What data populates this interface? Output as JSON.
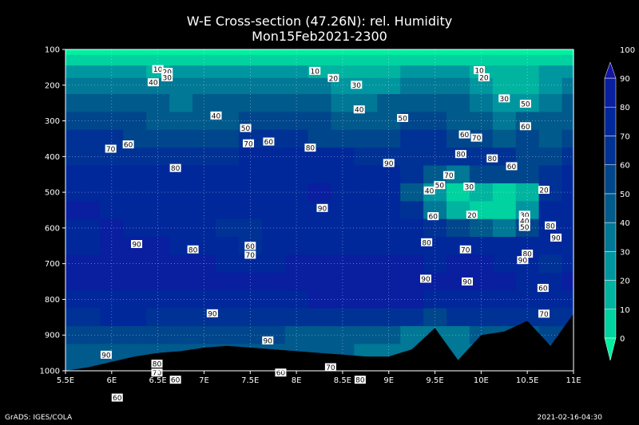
{
  "title_line1": "W-E Cross-section (47.26N): rel. Humidity",
  "title_line2": "Mon15Feb2021-2300",
  "footer_left": "GrADS: IGES/COLA",
  "footer_right": "2021-02-16-04:30",
  "chart_data": {
    "type": "heatmap",
    "title": "W-E Cross-section (47.26N): rel. Humidity",
    "subtitle": "Mon15Feb2021-2300",
    "x_ticks": [
      "5.5E",
      "6E",
      "6.5E",
      "7E",
      "7.5E",
      "8E",
      "8.5E",
      "9E",
      "9.5E",
      "10E",
      "10.5E",
      "11E"
    ],
    "x_values": [
      5.5,
      6,
      6.5,
      7,
      7.5,
      8,
      8.5,
      9,
      9.5,
      10,
      10.5,
      11
    ],
    "xlim": [
      5.5,
      11
    ],
    "y_ticks": [
      "100",
      "200",
      "300",
      "400",
      "500",
      "600",
      "700",
      "800",
      "900",
      "1000"
    ],
    "y_values": [
      100,
      200,
      300,
      400,
      500,
      600,
      700,
      800,
      900,
      1000
    ],
    "ylim": [
      1000,
      100
    ],
    "grid": true,
    "colorbar": {
      "levels": [
        "0",
        "10",
        "20",
        "30",
        "40",
        "50",
        "60",
        "70",
        "80",
        "90",
        "100"
      ],
      "colors": [
        "#00f0a0",
        "#00d2a0",
        "#00b4a0",
        "#0096a0",
        "#007896",
        "#005a8c",
        "#00468c",
        "#003296",
        "#00289b",
        "#0a1ea0",
        "#1414a5"
      ]
    },
    "rows_hpa": [
      100,
      130,
      160,
      200,
      250,
      300,
      350,
      400,
      450,
      500,
      550,
      600,
      650,
      700,
      750,
      800,
      850,
      900,
      950,
      1000
    ],
    "cols_lon": [
      5.5,
      5.75,
      6,
      6.25,
      6.5,
      6.75,
      7,
      7.25,
      7.5,
      7.75,
      8,
      8.25,
      8.5,
      8.75,
      9,
      9.25,
      9.5,
      9.75,
      10,
      10.25,
      10.5,
      10.75,
      11
    ],
    "rh": [
      [
        5,
        5,
        5,
        5,
        5,
        5,
        5,
        5,
        5,
        5,
        5,
        5,
        5,
        5,
        5,
        5,
        5,
        5,
        5,
        5,
        5,
        5,
        5
      ],
      [
        15,
        15,
        15,
        15,
        15,
        15,
        15,
        15,
        15,
        15,
        15,
        15,
        15,
        15,
        15,
        15,
        15,
        15,
        15,
        15,
        15,
        15,
        15
      ],
      [
        30,
        30,
        30,
        30,
        28,
        30,
        30,
        30,
        30,
        30,
        30,
        28,
        25,
        25,
        28,
        30,
        30,
        30,
        25,
        22,
        25,
        30,
        30
      ],
      [
        42,
        42,
        42,
        42,
        40,
        42,
        42,
        42,
        42,
        42,
        42,
        40,
        35,
        32,
        38,
        42,
        42,
        40,
        35,
        25,
        28,
        35,
        40
      ],
      [
        55,
        55,
        55,
        55,
        50,
        48,
        50,
        52,
        55,
        55,
        55,
        52,
        48,
        45,
        50,
        55,
        55,
        50,
        45,
        35,
        38,
        45,
        50
      ],
      [
        62,
        62,
        62,
        60,
        58,
        55,
        55,
        58,
        62,
        62,
        62,
        60,
        58,
        55,
        58,
        62,
        62,
        58,
        55,
        40,
        55,
        50,
        55
      ],
      [
        70,
        70,
        70,
        68,
        65,
        65,
        65,
        68,
        72,
        70,
        70,
        68,
        68,
        65,
        68,
        72,
        70,
        66,
        62,
        55,
        60,
        55,
        62
      ],
      [
        78,
        78,
        78,
        76,
        75,
        75,
        75,
        78,
        80,
        80,
        82,
        82,
        80,
        78,
        78,
        78,
        75,
        72,
        70,
        70,
        68,
        62,
        70
      ],
      [
        85,
        85,
        85,
        84,
        84,
        82,
        82,
        84,
        85,
        86,
        88,
        88,
        88,
        86,
        86,
        72,
        55,
        45,
        62,
        68,
        62,
        75,
        82
      ],
      [
        88,
        88,
        88,
        87,
        86,
        85,
        84,
        84,
        86,
        88,
        88,
        90,
        88,
        88,
        88,
        55,
        30,
        15,
        20,
        18,
        25,
        78,
        86
      ],
      [
        90,
        90,
        88,
        88,
        88,
        85,
        84,
        84,
        84,
        85,
        86,
        88,
        88,
        88,
        88,
        70,
        40,
        20,
        18,
        15,
        30,
        80,
        88
      ],
      [
        88,
        88,
        90,
        88,
        88,
        85,
        80,
        78,
        70,
        80,
        86,
        88,
        88,
        88,
        88,
        85,
        70,
        60,
        55,
        45,
        60,
        85,
        88
      ],
      [
        88,
        88,
        90,
        90,
        90,
        88,
        85,
        80,
        72,
        82,
        86,
        88,
        88,
        88,
        88,
        88,
        86,
        85,
        85,
        88,
        80,
        88,
        88
      ],
      [
        90,
        90,
        92,
        92,
        92,
        92,
        90,
        88,
        88,
        88,
        90,
        90,
        90,
        90,
        90,
        90,
        88,
        90,
        90,
        88,
        86,
        70,
        85
      ],
      [
        90,
        90,
        92,
        92,
        92,
        92,
        92,
        92,
        90,
        90,
        92,
        92,
        92,
        92,
        92,
        92,
        90,
        90,
        90,
        90,
        88,
        85,
        90
      ],
      [
        86,
        86,
        88,
        88,
        88,
        88,
        88,
        88,
        88,
        88,
        88,
        90,
        90,
        90,
        90,
        90,
        88,
        88,
        88,
        88,
        88,
        88,
        88
      ],
      [
        78,
        78,
        80,
        80,
        78,
        76,
        76,
        76,
        76,
        75,
        75,
        74,
        72,
        72,
        70,
        70,
        68,
        70,
        72,
        72,
        72,
        75,
        76
      ],
      [
        65,
        65,
        68,
        68,
        68,
        66,
        64,
        62,
        60,
        60,
        58,
        58,
        58,
        55,
        50,
        45,
        40,
        45,
        50,
        55,
        55,
        60,
        62
      ],
      [
        55,
        55,
        58,
        58,
        58,
        56,
        55,
        55,
        55,
        54,
        52,
        52,
        50,
        48,
        45,
        40,
        35,
        40,
        45,
        48,
        50,
        52,
        55
      ],
      [
        50,
        50,
        52,
        52,
        52,
        52,
        50,
        50,
        50,
        50,
        48,
        48,
        46,
        45,
        42,
        38,
        32,
        38,
        42,
        45,
        48,
        50,
        52
      ]
    ],
    "terrain_hpa": [
      1000,
      990,
      975,
      960,
      950,
      945,
      935,
      930,
      935,
      940,
      945,
      950,
      955,
      960,
      960,
      940,
      880,
      970,
      900,
      890,
      860,
      930,
      840
    ],
    "contour_labels": [
      {
        "t": "10",
        "x": 6.5,
        "p": 155
      },
      {
        "t": "20",
        "x": 6.6,
        "p": 163
      },
      {
        "t": "30",
        "x": 6.6,
        "p": 178
      },
      {
        "t": "40",
        "x": 6.45,
        "p": 192
      },
      {
        "t": "10",
        "x": 8.2,
        "p": 160
      },
      {
        "t": "20",
        "x": 8.4,
        "p": 180
      },
      {
        "t": "30",
        "x": 8.65,
        "p": 199
      },
      {
        "t": "10",
        "x": 9.98,
        "p": 158
      },
      {
        "t": "20",
        "x": 10.03,
        "p": 178
      },
      {
        "t": "30",
        "x": 10.25,
        "p": 237
      },
      {
        "t": "50",
        "x": 10.48,
        "p": 252
      },
      {
        "t": "40",
        "x": 8.68,
        "p": 268
      },
      {
        "t": "40",
        "x": 7.13,
        "p": 285
      },
      {
        "t": "50",
        "x": 9.15,
        "p": 292
      },
      {
        "t": "50",
        "x": 7.45,
        "p": 320
      },
      {
        "t": "60",
        "x": 10.48,
        "p": 315
      },
      {
        "t": "60",
        "x": 9.82,
        "p": 338
      },
      {
        "t": "70",
        "x": 9.95,
        "p": 347
      },
      {
        "t": "60",
        "x": 6.18,
        "p": 366
      },
      {
        "t": "70",
        "x": 7.48,
        "p": 363
      },
      {
        "t": "60",
        "x": 7.7,
        "p": 358
      },
      {
        "t": "70",
        "x": 5.99,
        "p": 378
      },
      {
        "t": "80",
        "x": 8.15,
        "p": 375
      },
      {
        "t": "80",
        "x": 9.78,
        "p": 393
      },
      {
        "t": "80",
        "x": 10.12,
        "p": 405
      },
      {
        "t": "90",
        "x": 9,
        "p": 418
      },
      {
        "t": "80",
        "x": 6.69,
        "p": 432
      },
      {
        "t": "60",
        "x": 10.33,
        "p": 427
      },
      {
        "t": "70",
        "x": 9.65,
        "p": 452
      },
      {
        "t": "50",
        "x": 9.55,
        "p": 480
      },
      {
        "t": "40",
        "x": 9.44,
        "p": 495
      },
      {
        "t": "30",
        "x": 9.87,
        "p": 484
      },
      {
        "t": "20",
        "x": 10.68,
        "p": 493
      },
      {
        "t": "90",
        "x": 8.28,
        "p": 544
      },
      {
        "t": "60",
        "x": 9.48,
        "p": 567
      },
      {
        "t": "20",
        "x": 9.9,
        "p": 563
      },
      {
        "t": "30",
        "x": 10.47,
        "p": 563
      },
      {
        "t": "40",
        "x": 10.47,
        "p": 580
      },
      {
        "t": "50",
        "x": 10.47,
        "p": 597
      },
      {
        "t": "80",
        "x": 10.75,
        "p": 593
      },
      {
        "t": "80",
        "x": 9.41,
        "p": 640
      },
      {
        "t": "90",
        "x": 10.81,
        "p": 627
      },
      {
        "t": "90",
        "x": 6.27,
        "p": 645
      },
      {
        "t": "80",
        "x": 6.88,
        "p": 660
      },
      {
        "t": "60",
        "x": 7.5,
        "p": 650
      },
      {
        "t": "70",
        "x": 7.5,
        "p": 675
      },
      {
        "t": "70",
        "x": 9.83,
        "p": 660
      },
      {
        "t": "80",
        "x": 10.5,
        "p": 672
      },
      {
        "t": "90",
        "x": 10.45,
        "p": 690
      },
      {
        "t": "90",
        "x": 9.4,
        "p": 742
      },
      {
        "t": "90",
        "x": 9.85,
        "p": 750
      },
      {
        "t": "60",
        "x": 10.67,
        "p": 768
      },
      {
        "t": "90",
        "x": 7.09,
        "p": 839
      },
      {
        "t": "70",
        "x": 10.68,
        "p": 840
      },
      {
        "t": "90",
        "x": 7.69,
        "p": 915
      },
      {
        "t": "90",
        "x": 5.94,
        "p": 955
      },
      {
        "t": "80",
        "x": 6.49,
        "p": 980
      },
      {
        "t": "70",
        "x": 6.49,
        "p": 1005
      },
      {
        "t": "70",
        "x": 8.37,
        "p": 990
      },
      {
        "t": "60",
        "x": 6.69,
        "p": 1025
      },
      {
        "t": "60",
        "x": 7.83,
        "p": 1005
      },
      {
        "t": "80",
        "x": 8.69,
        "p": 1025
      },
      {
        "t": "60",
        "x": 6.06,
        "p": 1075
      }
    ]
  }
}
